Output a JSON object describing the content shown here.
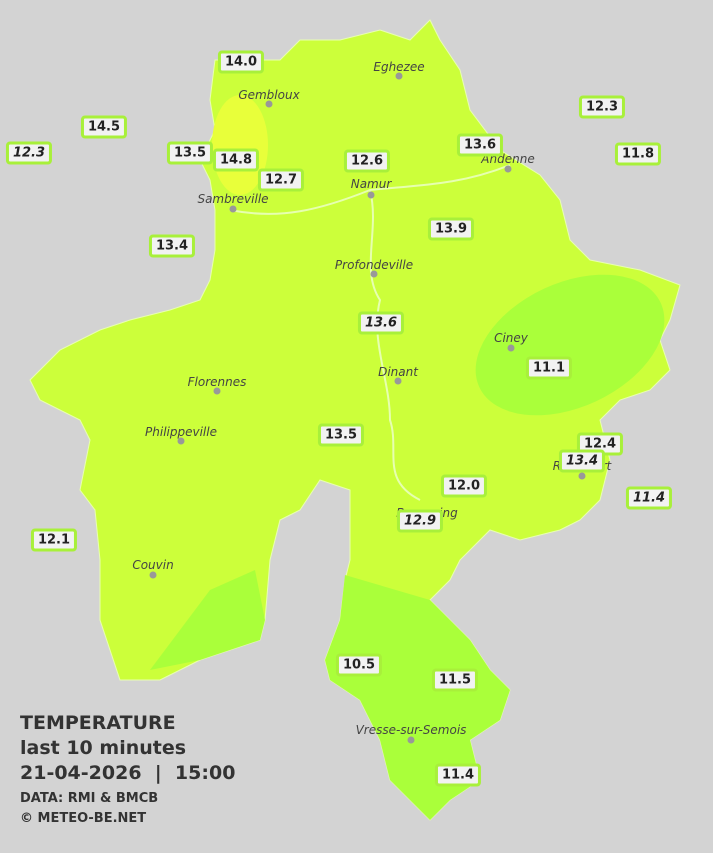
{
  "legend": {
    "title": "TEMPERATURE",
    "subtitle": "last 10 minutes",
    "datetime": "21-04-2026  |  15:00",
    "source": "DATA: RMI & BMCB",
    "copyright": "© METEO-BE.NET"
  },
  "cities": [
    "Eghezee",
    "Gembloux",
    "Andenne",
    "Namur",
    "Sambreville",
    "Profondeville",
    "Ciney",
    "Dinant",
    "Florennes",
    "Philippeville",
    "Rochefort",
    "Beauraing",
    "Couvin",
    "Vresse-sur-Semois"
  ],
  "stations": [
    {
      "label": "14.0",
      "italic": false
    },
    {
      "label": "14.5",
      "italic": false
    },
    {
      "label": "12.3",
      "italic": true
    },
    {
      "label": "13.5",
      "italic": false
    },
    {
      "label": "14.8",
      "italic": false
    },
    {
      "label": "12.7",
      "italic": false
    },
    {
      "label": "12.6",
      "italic": false
    },
    {
      "label": "13.6",
      "italic": false
    },
    {
      "label": "12.3",
      "italic": false
    },
    {
      "label": "11.8",
      "italic": false
    },
    {
      "label": "13.4",
      "italic": false
    },
    {
      "label": "13.9",
      "italic": false
    },
    {
      "label": "13.6",
      "italic": true
    },
    {
      "label": "11.1",
      "italic": false
    },
    {
      "label": "13.5",
      "italic": false
    },
    {
      "label": "12.4",
      "italic": false
    },
    {
      "label": "13.4",
      "italic": true
    },
    {
      "label": "12.0",
      "italic": false
    },
    {
      "label": "11.4",
      "italic": true
    },
    {
      "label": "12.9",
      "italic": true
    },
    {
      "label": "12.1",
      "italic": false
    },
    {
      "label": "10.5",
      "italic": false
    },
    {
      "label": "11.5",
      "italic": false
    },
    {
      "label": "11.4",
      "italic": false
    }
  ]
}
